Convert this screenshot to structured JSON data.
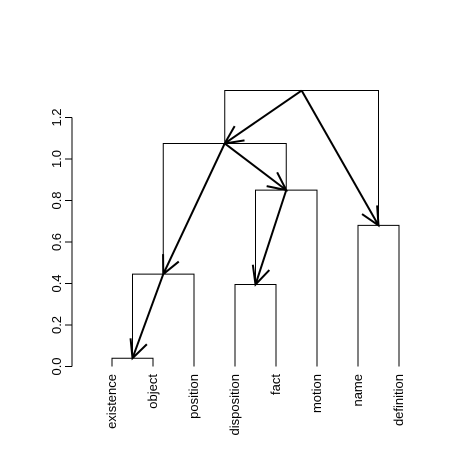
{
  "chart_data": {
    "type": "dendrogram",
    "title": "",
    "xlabel": "",
    "ylabel": "",
    "ylim": [
      0,
      1.3
    ],
    "yticks": [
      0.0,
      0.2,
      0.4,
      0.6,
      0.8,
      1.0,
      1.2
    ],
    "ytick_labels": [
      "0.0",
      "0.2",
      "0.4",
      "0.6",
      "0.8",
      "1.0",
      "1.2"
    ],
    "leaves": [
      "existence",
      "object",
      "position",
      "disposition",
      "fact",
      "motion",
      "name",
      "definition"
    ],
    "merges": [
      {
        "id": "m1",
        "left": "existence",
        "right": "object",
        "height": 0.04
      },
      {
        "id": "m2",
        "left": "disposition",
        "right": "fact",
        "height": 0.395
      },
      {
        "id": "m3",
        "left": "m1",
        "right": "position",
        "height": 0.445
      },
      {
        "id": "m4",
        "left": "name",
        "right": "definition",
        "height": 0.68
      },
      {
        "id": "m5",
        "left": "m2",
        "right": "motion",
        "height": 0.85
      },
      {
        "id": "m6",
        "left": "m3",
        "right": "m5",
        "height": 1.075
      },
      {
        "id": "m7",
        "left": "m6",
        "right": "m4",
        "height": 1.33
      }
    ],
    "arrows": [
      {
        "from": "m7",
        "to": "m6"
      },
      {
        "from": "m7",
        "to": "m4"
      },
      {
        "from": "m6",
        "to": "m3"
      },
      {
        "from": "m6",
        "to": "m5"
      },
      {
        "from": "m5",
        "to": "m2"
      },
      {
        "from": "m3",
        "to": "m1"
      }
    ]
  }
}
